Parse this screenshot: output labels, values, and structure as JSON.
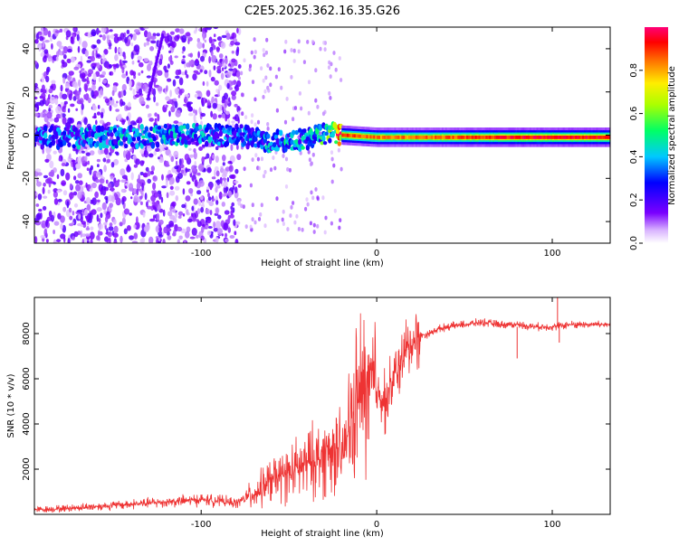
{
  "figure_title": "C2E5.2025.362.16.35.G26",
  "chart_data": [
    {
      "type": "heatmap",
      "name": "spectrogram",
      "title": "C2E5.2025.362.16.35.G26",
      "xlabel": "Height of straight line (km)",
      "ylabel": "Frequency (Hz)",
      "xlim": [
        -195,
        133
      ],
      "ylim": [
        -50,
        50
      ],
      "xticks": [
        -100,
        0,
        100
      ],
      "xtick_labels": [
        "-100",
        "0",
        "100"
      ],
      "yticks": [
        -40,
        -20,
        0,
        20,
        40
      ],
      "ytick_labels": [
        "-40",
        "-20",
        "0",
        "20",
        "40"
      ],
      "colorbar": {
        "label": "Normalized spectral amplitude",
        "range": [
          0,
          1
        ],
        "ticks": [
          0.0,
          0.2,
          0.4,
          0.6,
          0.8
        ],
        "tick_labels": [
          "0.0",
          "0.2",
          "0.4",
          "0.6",
          "0.8"
        ],
        "colormap": "rainbow (violet-blue-cyan-green-yellow-red-magenta)"
      },
      "ridge": {
        "description": "main energy ridge near 0 Hz",
        "points": [
          {
            "x": -190,
            "y": -1,
            "amp": 0.3
          },
          {
            "x": -150,
            "y": -1,
            "amp": 0.35
          },
          {
            "x": -110,
            "y": 0,
            "amp": 0.35
          },
          {
            "x": -80,
            "y": 0,
            "amp": 0.3
          },
          {
            "x": -60,
            "y": -3,
            "amp": 0.35
          },
          {
            "x": -40,
            "y": -2,
            "amp": 0.4
          },
          {
            "x": -25,
            "y": 2,
            "amp": 0.5
          },
          {
            "x": -20,
            "y": 0,
            "amp": 0.9
          },
          {
            "x": 0,
            "y": -1,
            "amp": 0.85
          },
          {
            "x": 20,
            "y": -1,
            "amp": 0.85
          },
          {
            "x": 50,
            "y": -1,
            "amp": 0.9
          },
          {
            "x": 80,
            "y": -1,
            "amp": 0.95
          },
          {
            "x": 100,
            "y": -1,
            "amp": 0.95
          },
          {
            "x": 133,
            "y": -1,
            "amp": 0.95
          }
        ]
      }
    },
    {
      "type": "line",
      "name": "snr",
      "xlabel": "Height of straight line (km)",
      "ylabel": "SNR (10 * v/v)",
      "xlim": [
        -195,
        133
      ],
      "ylim": [
        0,
        9600
      ],
      "xticks": [
        -100,
        0,
        100
      ],
      "xtick_labels": [
        "-100",
        "0",
        "100"
      ],
      "yticks": [
        2000,
        4000,
        6000,
        8000
      ],
      "ytick_labels": [
        "2000",
        "4000",
        "6000",
        "8000"
      ],
      "color": "#ee3333",
      "series": [
        {
          "name": "SNR",
          "x": [
            -195,
            -180,
            -160,
            -140,
            -120,
            -100,
            -90,
            -80,
            -70,
            -60,
            -50,
            -40,
            -30,
            -25,
            -20,
            -15,
            -10,
            -5,
            0,
            5,
            10,
            15,
            20,
            25,
            30,
            35,
            40,
            50,
            60,
            70,
            80,
            90,
            100,
            110,
            120,
            133
          ],
          "y": [
            200,
            250,
            350,
            450,
            550,
            650,
            600,
            500,
            900,
            1500,
            1800,
            2200,
            2600,
            3000,
            2500,
            4000,
            5200,
            5600,
            5600,
            5000,
            6000,
            7000,
            7600,
            7900,
            8000,
            8200,
            8300,
            8400,
            8500,
            8400,
            8400,
            8300,
            8300,
            8400,
            8400,
            8400
          ]
        }
      ]
    }
  ]
}
